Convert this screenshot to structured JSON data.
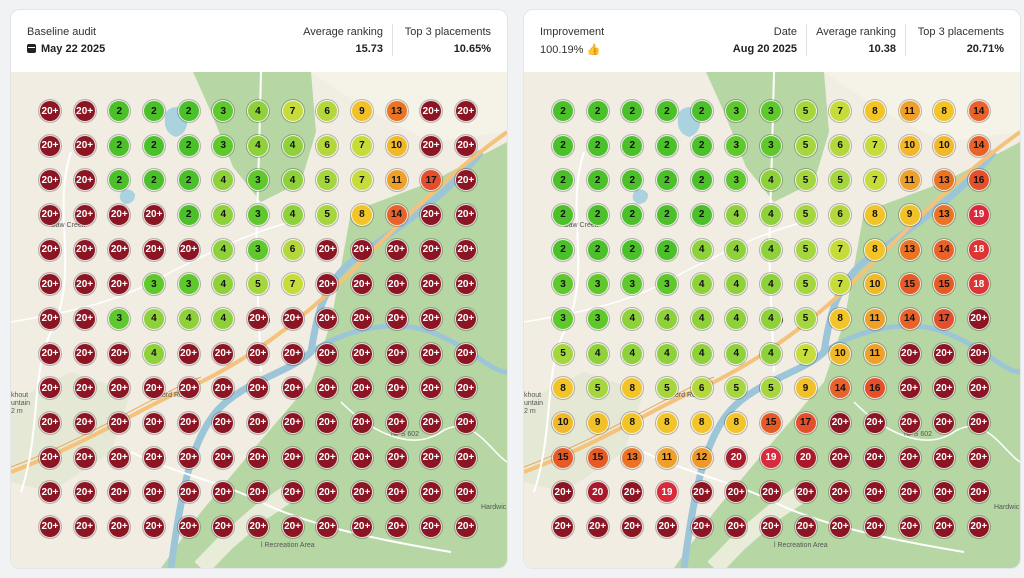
{
  "baseline": {
    "audit_label": "Baseline audit",
    "date": "May 22 2025",
    "avg_label": "Average ranking",
    "avg_value": "15.73",
    "top3_label": "Top 3 placements",
    "top3_value": "10.65%",
    "grid": [
      [
        "20+",
        "20+",
        "2",
        "2",
        "2",
        "3",
        "4",
        "7",
        "6",
        "9",
        "13",
        "20+",
        "20+"
      ],
      [
        "20+",
        "20+",
        "2",
        "2",
        "2",
        "3",
        "4",
        "4",
        "6",
        "7",
        "10",
        "20+",
        "20+"
      ],
      [
        "20+",
        "20+",
        "2",
        "2",
        "2",
        "4",
        "3",
        "4",
        "5",
        "7",
        "11",
        "17",
        "20+"
      ],
      [
        "20+",
        "20+",
        "20+",
        "20+",
        "2",
        "4",
        "3",
        "4",
        "5",
        "8",
        "14",
        "20+",
        "20+"
      ],
      [
        "20+",
        "20+",
        "20+",
        "20+",
        "20+",
        "4",
        "3",
        "6",
        "20+",
        "20+",
        "20+",
        "20+",
        "20+"
      ],
      [
        "20+",
        "20+",
        "20+",
        "3",
        "3",
        "4",
        "5",
        "7",
        "20+",
        "20+",
        "20+",
        "20+",
        "20+"
      ],
      [
        "20+",
        "20+",
        "3",
        "4",
        "4",
        "4",
        "20+",
        "20+",
        "20+",
        "20+",
        "20+",
        "20+",
        "20+"
      ],
      [
        "20+",
        "20+",
        "20+",
        "4",
        "20+",
        "20+",
        "20+",
        "20+",
        "20+",
        "20+",
        "20+",
        "20+",
        "20+"
      ],
      [
        "20+",
        "20+",
        "20+",
        "20+",
        "20+",
        "20+",
        "20+",
        "20+",
        "20+",
        "20+",
        "20+",
        "20+",
        "20+"
      ],
      [
        "20+",
        "20+",
        "20+",
        "20+",
        "20+",
        "20+",
        "20+",
        "20+",
        "20+",
        "20+",
        "20+",
        "20+",
        "20+"
      ],
      [
        "20+",
        "20+",
        "20+",
        "20+",
        "20+",
        "20+",
        "20+",
        "20+",
        "20+",
        "20+",
        "20+",
        "20+",
        "20+"
      ],
      [
        "20+",
        "20+",
        "20+",
        "20+",
        "20+",
        "20+",
        "20+",
        "20+",
        "20+",
        "20+",
        "20+",
        "20+",
        "20+"
      ],
      [
        "20+",
        "20+",
        "20+",
        "20+",
        "20+",
        "20+",
        "20+",
        "20+",
        "20+",
        "20+",
        "20+",
        "20+",
        "20+"
      ]
    ]
  },
  "current": {
    "improvement_label": "Improvement",
    "improvement_value": "100.19%",
    "date_label": "Date",
    "date": "Aug 20 2025",
    "avg_label": "Average ranking",
    "avg_value": "10.38",
    "top3_label": "Top 3 placements",
    "top3_value": "20.71%",
    "grid": [
      [
        "2",
        "2",
        "2",
        "2",
        "2",
        "3",
        "3",
        "5",
        "7",
        "8",
        "11",
        "8",
        "14"
      ],
      [
        "2",
        "2",
        "2",
        "2",
        "2",
        "3",
        "3",
        "5",
        "6",
        "7",
        "10",
        "10",
        "14"
      ],
      [
        "2",
        "2",
        "2",
        "2",
        "2",
        "3",
        "4",
        "5",
        "5",
        "7",
        "11",
        "13",
        "16"
      ],
      [
        "2",
        "2",
        "2",
        "2",
        "2",
        "4",
        "4",
        "5",
        "6",
        "8",
        "9",
        "13",
        "19"
      ],
      [
        "2",
        "2",
        "2",
        "2",
        "4",
        "4",
        "4",
        "5",
        "7",
        "8",
        "13",
        "14",
        "18"
      ],
      [
        "3",
        "3",
        "3",
        "3",
        "4",
        "4",
        "4",
        "5",
        "7",
        "10",
        "15",
        "15",
        "18"
      ],
      [
        "3",
        "3",
        "4",
        "4",
        "4",
        "4",
        "4",
        "5",
        "8",
        "11",
        "14",
        "17",
        "20+"
      ],
      [
        "5",
        "4",
        "4",
        "4",
        "4",
        "4",
        "4",
        "7",
        "10",
        "11",
        "20+",
        "20+",
        "20+"
      ],
      [
        "8",
        "5",
        "8",
        "5",
        "6",
        "5",
        "5",
        "9",
        "14",
        "16",
        "20+",
        "20+",
        "20+"
      ],
      [
        "10",
        "9",
        "8",
        "8",
        "8",
        "8",
        "15",
        "17",
        "20+",
        "20+",
        "20+",
        "20+",
        "20+"
      ],
      [
        "15",
        "15",
        "13",
        "11",
        "12",
        "20",
        "19",
        "20",
        "20+",
        "20+",
        "20+",
        "20+",
        "20+"
      ],
      [
        "20+",
        "20",
        "20+",
        "19",
        "20+",
        "20+",
        "20+",
        "20+",
        "20+",
        "20+",
        "20+",
        "20+",
        "20+"
      ],
      [
        "20+",
        "20+",
        "20+",
        "20+",
        "20+",
        "20+",
        "20+",
        "20+",
        "20+",
        "20+",
        "20+",
        "20+",
        "20+"
      ]
    ]
  },
  "map_labels": {
    "saw_creek": "Saw Creek",
    "lookout": "khout",
    "mountain": "untain",
    "elev": "2 m",
    "us209": "US 209",
    "nps602": "NPS 602",
    "hardwick": "Hardwic",
    "milford": "Milford Road",
    "recreation": "l Recreation Area"
  },
  "colors": {
    "rank_2": "#4cc02a",
    "rank_3": "#5ec82c",
    "rank_4": "#8fd13a",
    "rank_5": "#a6d63e",
    "rank_6": "#b4d83c",
    "rank_7": "#c5dc3a",
    "rank_8": "#f3c428",
    "rank_9": "#f2c12a",
    "rank_10": "#f0b82a",
    "rank_11": "#eea12a",
    "rank_12": "#ec9a2c",
    "rank_13": "#ea7424",
    "rank_14": "#e8622a",
    "rank_15": "#e65a26",
    "rank_16": "#e5502a",
    "rank_17": "#e34e2c",
    "rank_18": "#dd3434",
    "rank_19": "#d92a3c",
    "rank_20": "#a81a2a",
    "rank_20plus": "#8b1522"
  }
}
